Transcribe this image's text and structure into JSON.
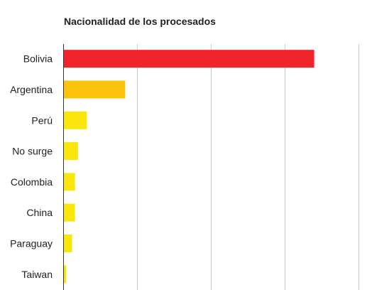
{
  "chart_data": {
    "type": "bar",
    "orientation": "horizontal",
    "title": "Nacionalidad de los procesados",
    "categories": [
      "Bolivia",
      "Argentina",
      "Perú",
      "No surge",
      "Colombia",
      "China",
      "Paraguay",
      "Taiwan"
    ],
    "values": [
      170,
      42,
      16,
      10,
      8,
      8,
      6,
      2
    ],
    "bar_colors": [
      "#f2242b",
      "#fcc30e",
      "#fae60c",
      "#fae60c",
      "#fae60c",
      "#fae60c",
      "#fae60c",
      "#fae60c"
    ],
    "xlim": [
      0,
      200
    ],
    "x_gridlines": [
      50,
      100,
      150,
      200
    ],
    "grid": true,
    "xlabel": "",
    "ylabel": ""
  }
}
